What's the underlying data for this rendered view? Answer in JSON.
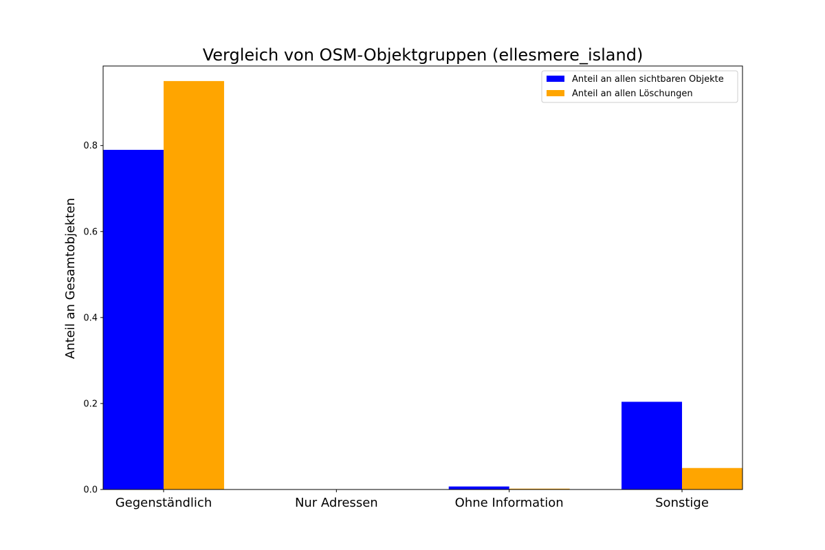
{
  "chart_data": {
    "type": "bar",
    "title": "Vergleich von OSM-Objektgruppen (ellesmere_island)",
    "xlabel": "",
    "ylabel": "Anteil an Gesamtobjekten",
    "categories": [
      "Gegenständlich",
      "Nur Adressen",
      "Ohne Information",
      "Sonstige"
    ],
    "series": [
      {
        "name": "Anteil an allen sichtbaren Objekte",
        "color": "#0000ff",
        "values": [
          0.79,
          0.0,
          0.007,
          0.204
        ]
      },
      {
        "name": "Anteil an allen Löschungen",
        "color": "#ffa500",
        "values": [
          0.95,
          0.0,
          0.002,
          0.05
        ]
      }
    ],
    "ylim": [
      0,
      0.985
    ],
    "yticks": [
      0.0,
      0.2,
      0.4,
      0.6,
      0.8
    ],
    "ytick_labels": [
      "0.0",
      "0.2",
      "0.4",
      "0.6",
      "0.8"
    ],
    "legend_position": "top-right",
    "grid": false
  }
}
